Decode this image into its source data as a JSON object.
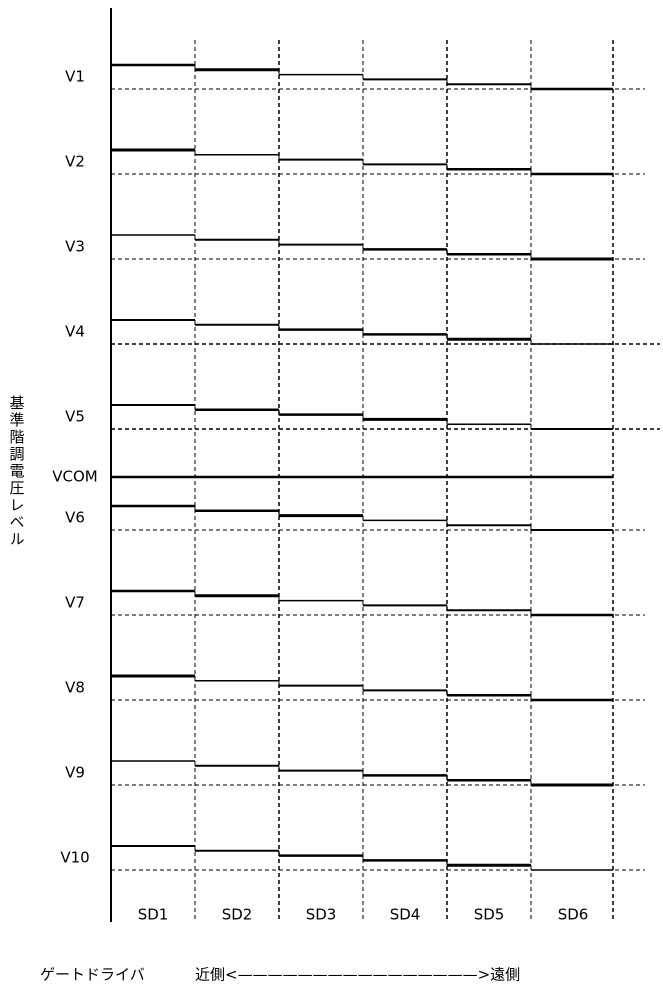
{
  "y_label": "基準階調電圧レベル",
  "rows": [
    "V1",
    "V2",
    "V3",
    "V4",
    "V5",
    "V6",
    "V7",
    "V8",
    "V9",
    "V10"
  ],
  "vcom": "VCOM",
  "columns": [
    "SD1",
    "SD2",
    "SD3",
    "SD4",
    "SD5",
    "SD6"
  ],
  "footer": {
    "gate_driver": "ゲートドライバ",
    "direction": "近側<————————————————>遠側"
  }
}
